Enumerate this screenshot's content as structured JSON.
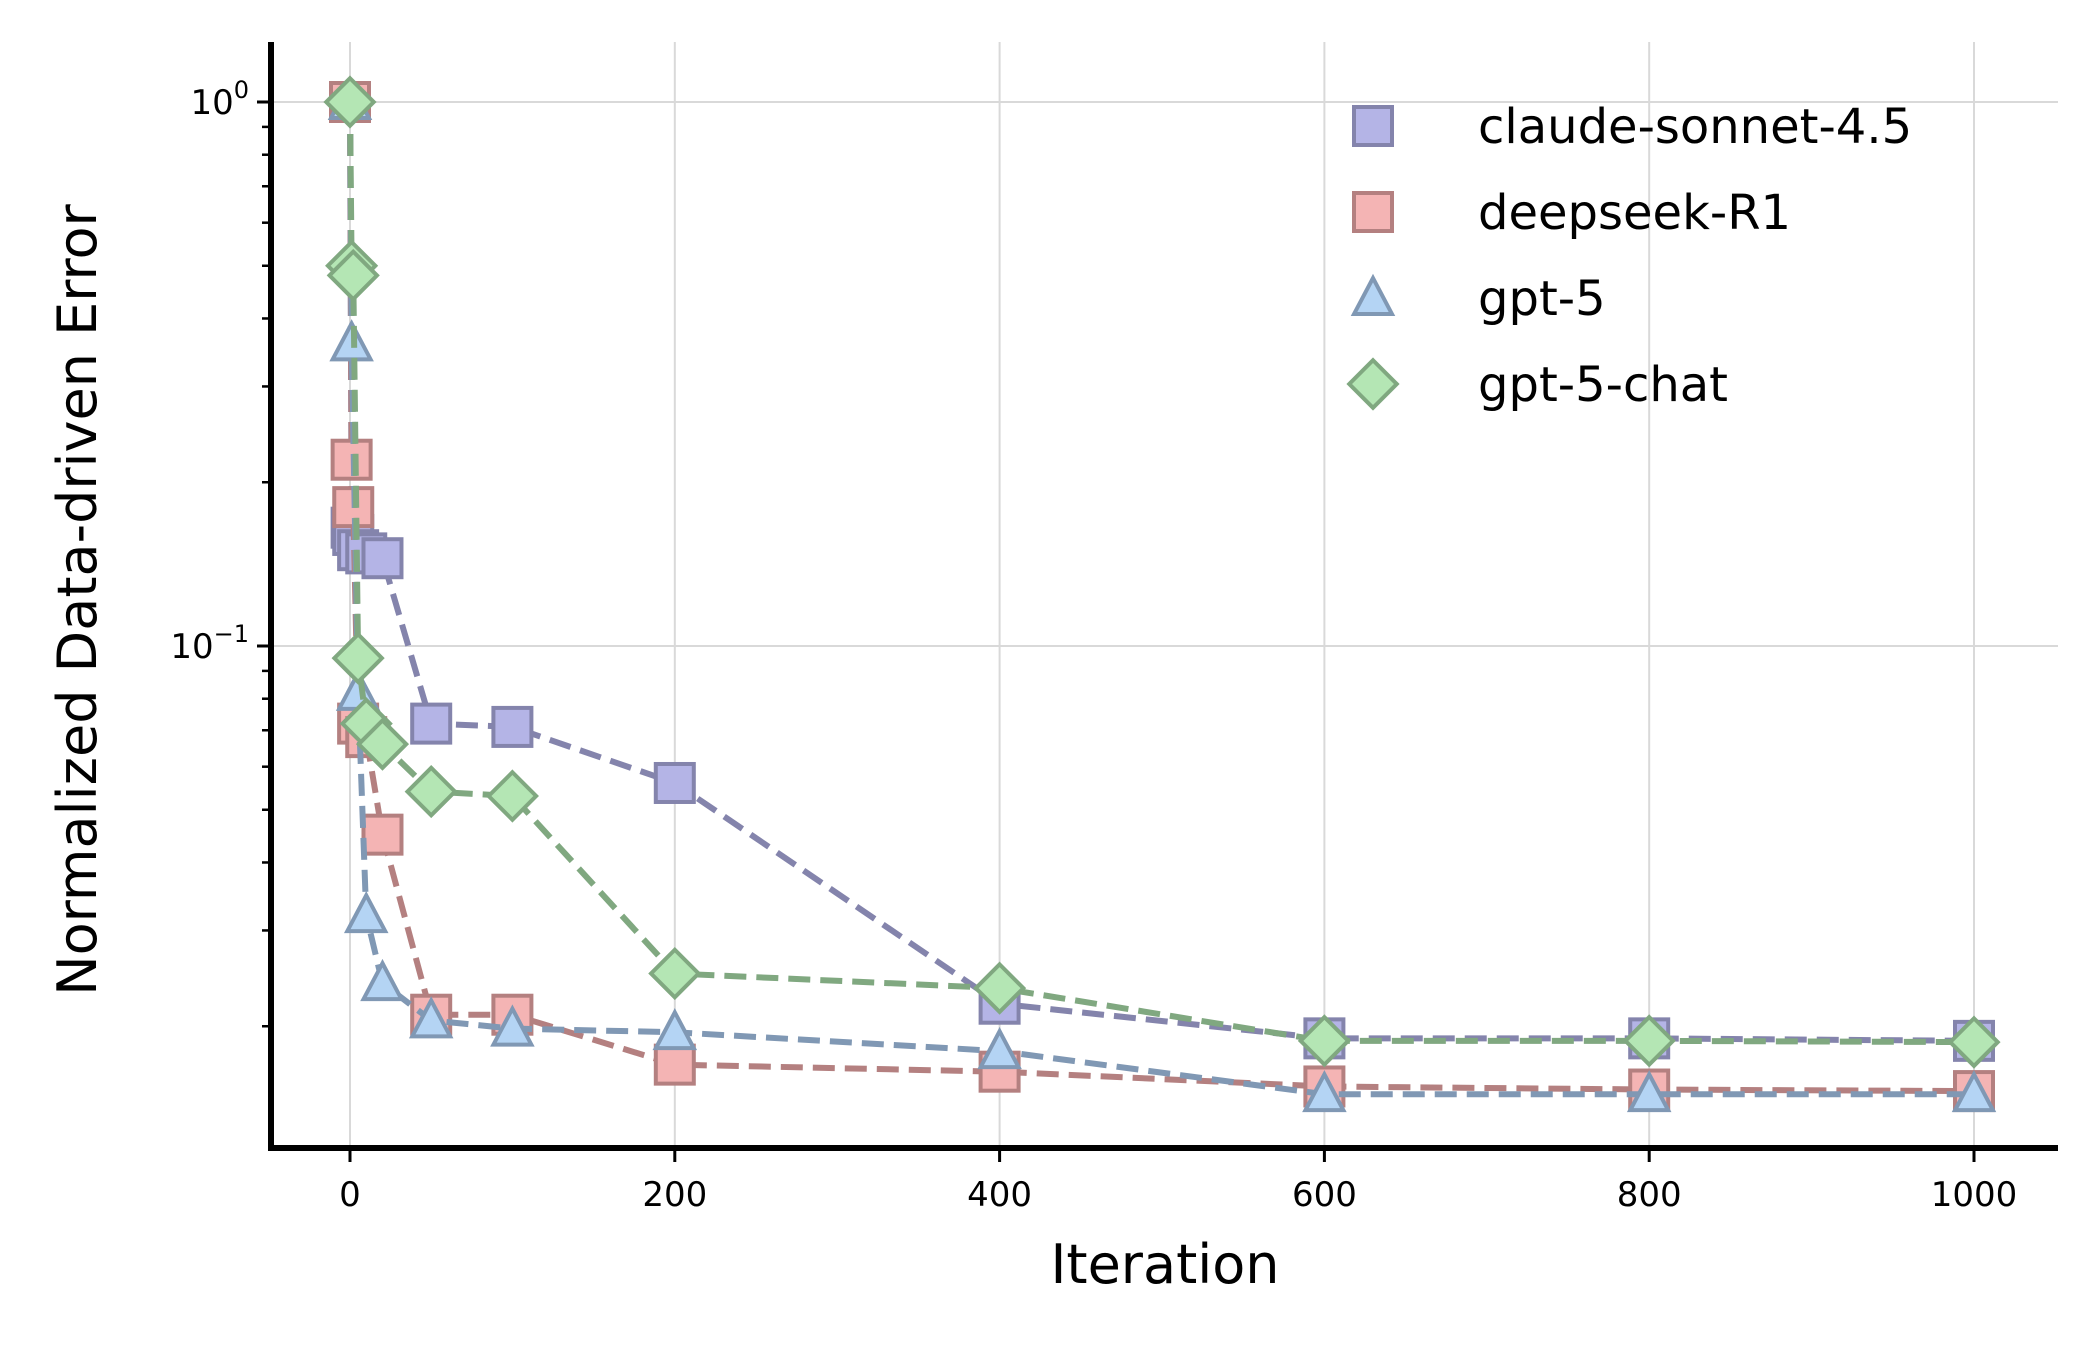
{
  "chart_data": {
    "type": "line",
    "title": "",
    "xlabel": "Iteration",
    "ylabel": "Normalized Data-driven Error",
    "yscale": "log",
    "xlim": [
      -50,
      1050
    ],
    "ylim": [
      0.0135,
      1.25
    ],
    "grid": true,
    "legend_position": "upper right",
    "x_ticks": [
      0,
      200,
      400,
      600,
      800,
      1000
    ],
    "x_tick_labels": [
      "0",
      "200",
      "400",
      "600",
      "800",
      "1000"
    ],
    "y_ticks": [
      1.0,
      0.1
    ],
    "y_tick_labels": [
      {
        "base": "10",
        "exp": "0"
      },
      {
        "base": "10",
        "exp": "−1"
      }
    ],
    "x": [
      0,
      1,
      2,
      5,
      10,
      20,
      50,
      100,
      200,
      400,
      600,
      800,
      1000
    ],
    "series": [
      {
        "name": "claude-sonnet-4.5",
        "marker": "square",
        "fill": "#b4b4e6",
        "edge": "#8484ac",
        "line": "#8484ac",
        "x": [
          0,
          1,
          2,
          5,
          10,
          20,
          50,
          100,
          200,
          400,
          600,
          800,
          1000
        ],
        "values": [
          1.0,
          0.165,
          0.16,
          0.15,
          0.148,
          0.145,
          0.072,
          0.071,
          0.056,
          0.022,
          0.019,
          0.019,
          0.0188
        ]
      },
      {
        "name": "deepseek-R1",
        "marker": "square",
        "fill": "#f4b4b4",
        "edge": "#b48080",
        "line": "#b48080",
        "x": [
          0,
          1,
          2,
          5,
          10,
          20,
          50,
          100,
          200,
          400,
          600,
          800,
          1000
        ],
        "values": [
          1.0,
          0.22,
          0.18,
          0.072,
          0.068,
          0.045,
          0.021,
          0.021,
          0.017,
          0.0165,
          0.0155,
          0.0153,
          0.0152
        ]
      },
      {
        "name": "gpt-5",
        "marker": "triangle",
        "fill": "#b4d4f4",
        "edge": "#8098b4",
        "line": "#8098b4",
        "x": [
          0,
          1,
          5,
          10,
          20,
          50,
          100,
          200,
          400,
          600,
          800,
          1000
        ],
        "values": [
          1.0,
          0.36,
          0.082,
          0.032,
          0.024,
          0.0205,
          0.0198,
          0.0195,
          0.018,
          0.015,
          0.015,
          0.015
        ]
      },
      {
        "name": "gpt-5-chat",
        "marker": "diamond",
        "fill": "#b4e6b4",
        "edge": "#80a880",
        "line": "#80a880",
        "x": [
          0,
          1,
          2,
          5,
          10,
          20,
          50,
          100,
          200,
          400,
          600,
          800,
          1000
        ],
        "values": [
          1.0,
          0.5,
          0.48,
          0.095,
          0.072,
          0.066,
          0.054,
          0.053,
          0.025,
          0.0235,
          0.0188,
          0.0188,
          0.0187
        ]
      }
    ]
  },
  "colors": {
    "axis": "#000000",
    "grid": "#d9d9d9",
    "background": "#ffffff"
  }
}
